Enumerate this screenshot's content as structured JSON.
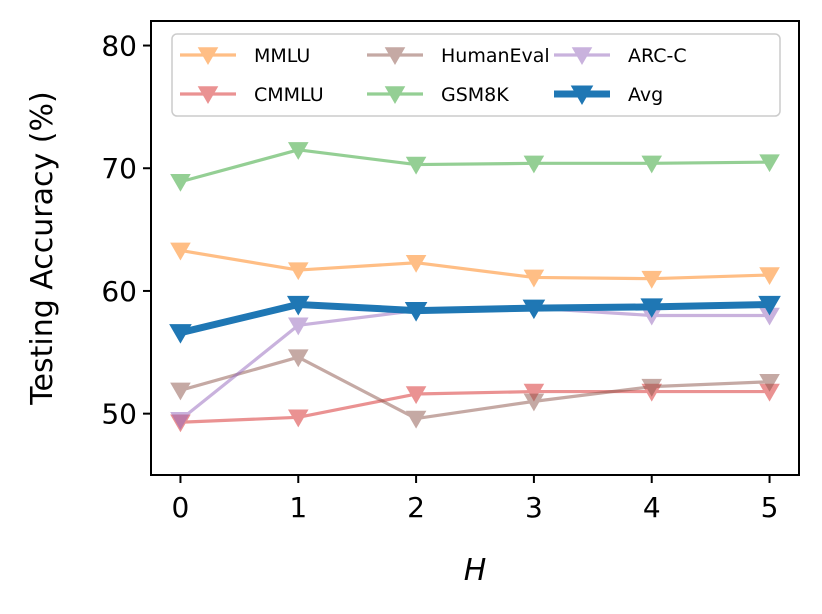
{
  "chart_data": {
    "type": "line",
    "title": "",
    "xlabel": "H",
    "ylabel": "Testing Accuracy (%)",
    "x": [
      0,
      1,
      2,
      3,
      4,
      5
    ],
    "xlim": [
      -0.25,
      5.25
    ],
    "ylim": [
      45,
      82
    ],
    "xticks": [
      0,
      1,
      2,
      3,
      4,
      5
    ],
    "yticks": [
      50,
      60,
      70,
      80
    ],
    "grid": false,
    "legend_position": "top",
    "series": [
      {
        "name": "MMLU",
        "color": "#ff7f0e",
        "values": [
          63.3,
          61.7,
          62.3,
          61.1,
          61.0,
          61.3
        ]
      },
      {
        "name": "CMMLU",
        "color": "#d62728",
        "values": [
          49.3,
          49.7,
          51.6,
          51.8,
          51.8,
          51.8
        ]
      },
      {
        "name": "HumanEval",
        "color": "#8c564b",
        "values": [
          51.9,
          54.6,
          49.6,
          51.0,
          52.2,
          52.6
        ]
      },
      {
        "name": "GSM8K",
        "color": "#2ca02c",
        "values": [
          68.9,
          71.5,
          70.3,
          70.4,
          70.4,
          70.5
        ]
      },
      {
        "name": "ARC-C",
        "color": "#9467bd",
        "values": [
          49.5,
          57.2,
          58.4,
          58.6,
          58.0,
          58.0
        ]
      },
      {
        "name": "Avg",
        "color": "#1f77b4",
        "values": [
          56.6,
          58.9,
          58.4,
          58.6,
          58.7,
          58.9
        ]
      }
    ]
  }
}
